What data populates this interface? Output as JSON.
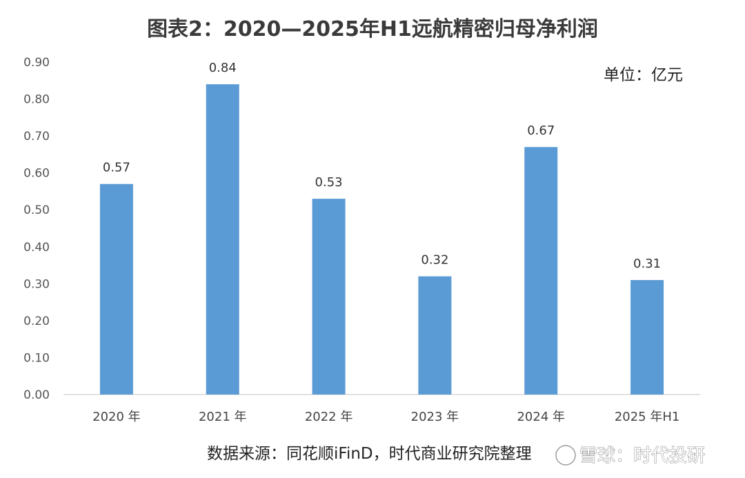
{
  "chart_data": {
    "type": "bar",
    "title": "图表2：2020—2025年H1远航精密归母净利润",
    "unit_label": "单位：亿元",
    "categories": [
      "2020 年",
      "2021 年",
      "2022 年",
      "2023 年",
      "2024 年",
      "2025 年H1"
    ],
    "values": [
      0.57,
      0.84,
      0.53,
      0.32,
      0.67,
      0.31
    ],
    "data_labels": [
      "0.57",
      "0.84",
      "0.53",
      "0.32",
      "0.67",
      "0.31"
    ],
    "ylim": [
      0,
      0.9
    ],
    "yticks": [
      "0.00",
      "0.10",
      "0.20",
      "0.30",
      "0.40",
      "0.50",
      "0.60",
      "0.70",
      "0.80",
      "0.90"
    ],
    "grid": false,
    "legend": "none",
    "bar_color": "#5b9bd5",
    "source": "数据来源：同花顺iFinD，时代商业研究院整理",
    "watermark": "雪球：时代投研"
  }
}
